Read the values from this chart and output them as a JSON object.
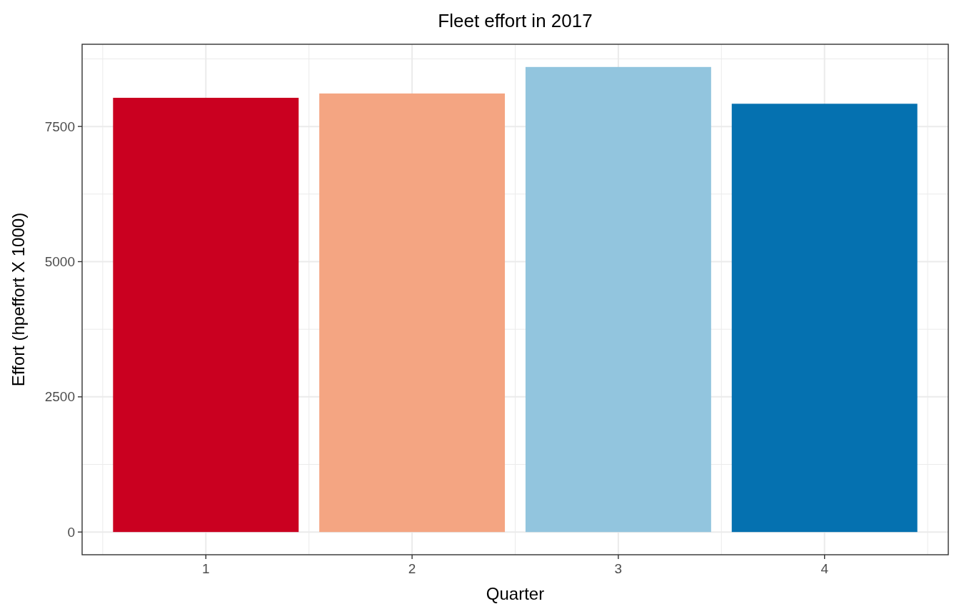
{
  "chart_data": {
    "type": "bar",
    "title": "Fleet effort in 2017",
    "xlabel": "Quarter",
    "ylabel": "Effort (hpeffort X 1000)",
    "categories": [
      "1",
      "2",
      "3",
      "4"
    ],
    "values": [
      8030,
      8110,
      8600,
      7920
    ],
    "colors": [
      "#ca0020",
      "#f4a582",
      "#92c5de",
      "#0571b0"
    ],
    "ylim": [
      -420,
      9020
    ],
    "yticks": [
      0,
      2500,
      5000,
      7500
    ],
    "grid": true
  }
}
